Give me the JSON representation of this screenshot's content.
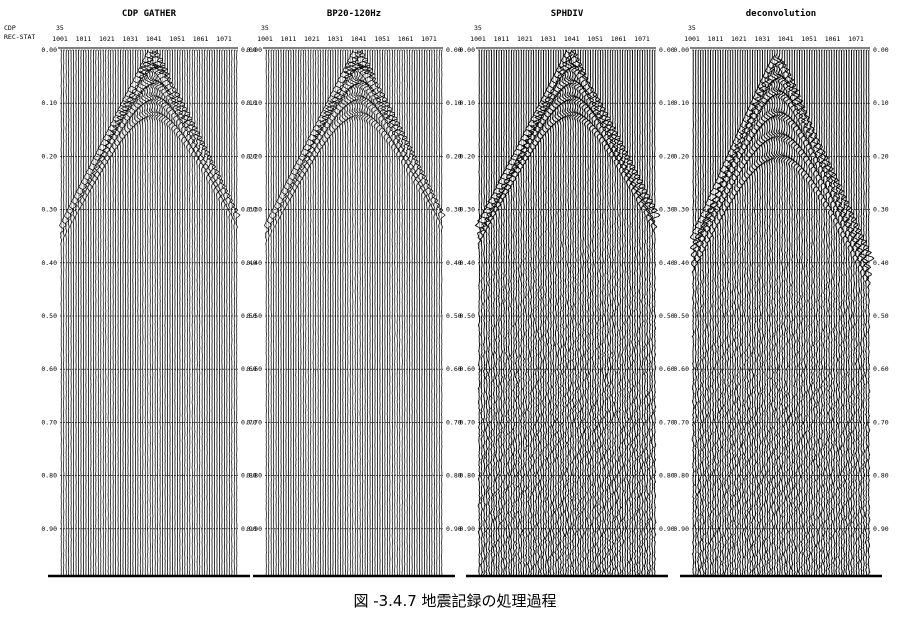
{
  "header_labels": {
    "cdp": "CDP",
    "rec": "REC-STAT"
  },
  "panels": [
    {
      "title": "CDP GATHER",
      "id": "35",
      "trace_labels": [
        "1001",
        "1011",
        "1021",
        "1031",
        "1041",
        "1051",
        "1061",
        "1071"
      ],
      "time_labels": [
        "0.00",
        "0.10",
        "0.20",
        "0.30",
        "0.40",
        "0.50",
        "0.60",
        "0.70",
        "0.80",
        "0.90"
      ]
    },
    {
      "title": "BP20-120Hz",
      "id": "35",
      "trace_labels": [
        "1001",
        "1011",
        "1021",
        "1031",
        "1041",
        "1051",
        "1061",
        "1071"
      ],
      "time_labels": [
        "0.00",
        "0.10",
        "0.20",
        "0.30",
        "0.40",
        "0.50",
        "0.60",
        "0.70",
        "0.80",
        "0.90"
      ]
    },
    {
      "title": "SPHDIV",
      "id": "35",
      "trace_labels": [
        "1001",
        "1011",
        "1021",
        "1031",
        "1041",
        "1051",
        "1061",
        "1071"
      ],
      "time_labels": [
        "0.00",
        "0.10",
        "0.20",
        "0.30",
        "0.40",
        "0.50",
        "0.60",
        "0.70",
        "0.80",
        "0.90"
      ]
    },
    {
      "title": "deconvolution",
      "id": "35",
      "trace_labels": [
        "1001",
        "1011",
        "1021",
        "1031",
        "1041",
        "1051",
        "1061",
        "1071"
      ],
      "time_labels": [
        "0.00",
        "0.10",
        "0.20",
        "0.30",
        "0.40",
        "0.50",
        "0.60",
        "0.70",
        "0.80",
        "0.90"
      ]
    }
  ],
  "caption": "図 -3.4.7 地震記録の処理過程"
}
